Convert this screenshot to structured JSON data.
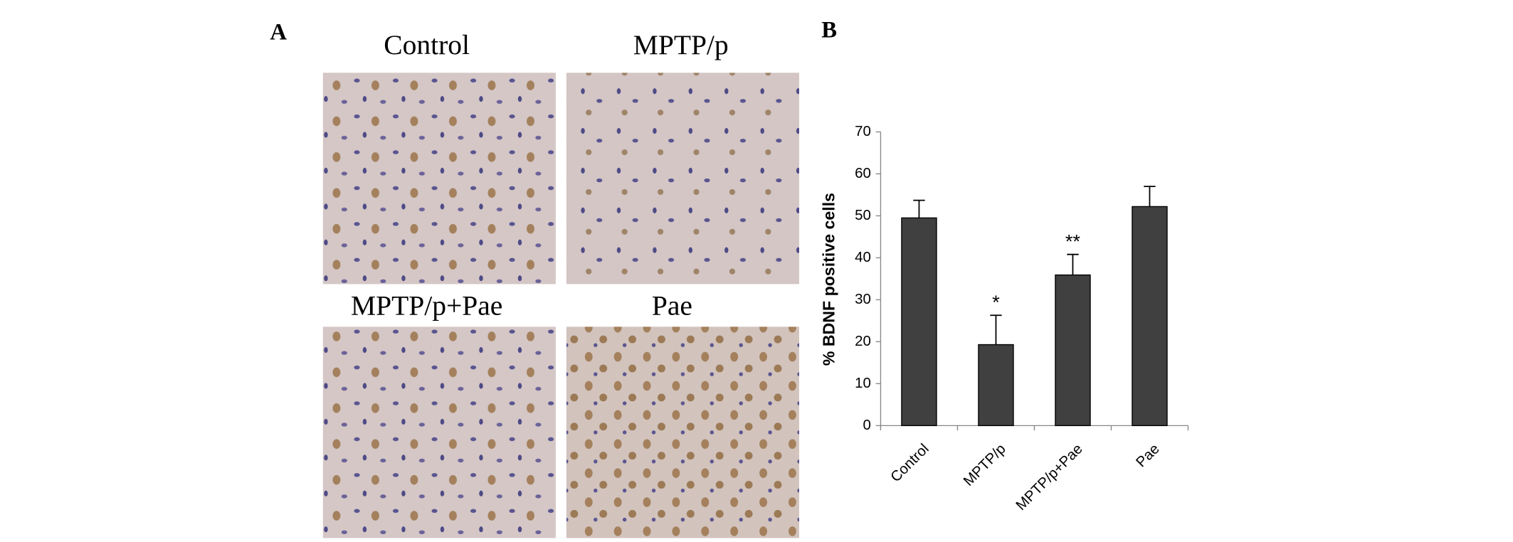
{
  "panels": {
    "a": {
      "label": "A",
      "images": [
        "Control",
        "MPTP/p",
        "MPTP/p+Pae",
        "Pae"
      ]
    }
  },
  "chart_data": {
    "type": "bar",
    "panel_label": "B",
    "ylabel": "% BDNF positive cells",
    "categories": [
      "Control",
      "MPTP/p",
      "MPTP/p+Pae",
      "Pae"
    ],
    "values": [
      49.5,
      19.3,
      35.9,
      52.2
    ],
    "errors": [
      4.2,
      7,
      4.9,
      4.8
    ],
    "annotations": [
      null,
      "*",
      "**",
      null
    ],
    "color": "#404040",
    "ylim": [
      0,
      70
    ],
    "yticks": [
      0,
      10,
      20,
      30,
      40,
      50,
      60,
      70
    ],
    "grid": false
  }
}
